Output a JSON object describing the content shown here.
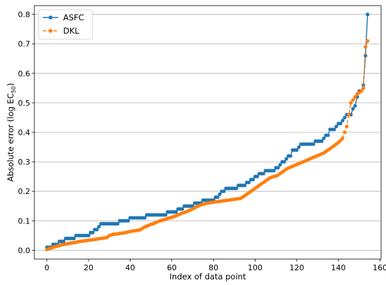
{
  "chart_data": {
    "type": "line",
    "title": "",
    "xlabel": "Index of data point",
    "ylabel": {
      "prefix": "Absolute error (log EC",
      "subscript": "50",
      "suffix": ")"
    },
    "xlim": [
      -6,
      160.5
    ],
    "ylim": [
      -0.03,
      0.83
    ],
    "xticks": [
      0,
      20,
      40,
      60,
      80,
      100,
      120,
      140,
      160
    ],
    "yticks": [
      0.0,
      0.1,
      0.2,
      0.3,
      0.4,
      0.5,
      0.6,
      0.7,
      0.8
    ],
    "xtick_labels": [
      "0",
      "20",
      "40",
      "60",
      "80",
      "100",
      "120",
      "140",
      "160"
    ],
    "ytick_labels": [
      "0.0",
      "0.1",
      "0.2",
      "0.3",
      "0.4",
      "0.5",
      "0.6",
      "0.7",
      "0.8"
    ],
    "grid": "y",
    "legend": "top-left",
    "series": [
      {
        "name": "ASFC",
        "color": "#1f77b4",
        "linestyle": "solid",
        "marker": "circle",
        "x": [
          0,
          1,
          2,
          3,
          4,
          5,
          6,
          7,
          8,
          9,
          10,
          11,
          12,
          13,
          14,
          15,
          16,
          17,
          18,
          19,
          20,
          21,
          22,
          23,
          24,
          25,
          26,
          27,
          28,
          29,
          30,
          31,
          32,
          33,
          34,
          35,
          36,
          37,
          38,
          39,
          40,
          41,
          42,
          43,
          44,
          45,
          46,
          47,
          48,
          49,
          50,
          51,
          52,
          53,
          54,
          55,
          56,
          57,
          58,
          59,
          60,
          61,
          62,
          63,
          64,
          65,
          66,
          67,
          68,
          69,
          70,
          71,
          72,
          73,
          74,
          75,
          76,
          77,
          78,
          79,
          80,
          81,
          82,
          83,
          84,
          85,
          86,
          87,
          88,
          89,
          90,
          91,
          92,
          93,
          94,
          95,
          96,
          97,
          98,
          99,
          100,
          101,
          102,
          103,
          104,
          105,
          106,
          107,
          108,
          109,
          110,
          111,
          112,
          113,
          114,
          115,
          116,
          117,
          118,
          119,
          120,
          121,
          122,
          123,
          124,
          125,
          126,
          127,
          128,
          129,
          130,
          131,
          132,
          133,
          134,
          135,
          136,
          137,
          138,
          139,
          140,
          141,
          142,
          143,
          144,
          145,
          146,
          147,
          148,
          149,
          150,
          151,
          152,
          153,
          154
        ],
        "values": [
          0.01,
          0.01,
          0.01,
          0.02,
          0.02,
          0.02,
          0.03,
          0.03,
          0.03,
          0.04,
          0.04,
          0.04,
          0.04,
          0.04,
          0.05,
          0.05,
          0.05,
          0.05,
          0.05,
          0.05,
          0.05,
          0.06,
          0.06,
          0.07,
          0.07,
          0.08,
          0.09,
          0.09,
          0.09,
          0.09,
          0.09,
          0.09,
          0.09,
          0.09,
          0.09,
          0.1,
          0.1,
          0.1,
          0.1,
          0.1,
          0.11,
          0.11,
          0.11,
          0.11,
          0.11,
          0.11,
          0.11,
          0.11,
          0.12,
          0.12,
          0.12,
          0.12,
          0.12,
          0.12,
          0.12,
          0.12,
          0.12,
          0.12,
          0.13,
          0.13,
          0.13,
          0.13,
          0.13,
          0.14,
          0.14,
          0.14,
          0.15,
          0.15,
          0.15,
          0.15,
          0.15,
          0.16,
          0.16,
          0.16,
          0.16,
          0.17,
          0.17,
          0.17,
          0.17,
          0.17,
          0.17,
          0.18,
          0.18,
          0.19,
          0.2,
          0.2,
          0.21,
          0.21,
          0.21,
          0.21,
          0.21,
          0.21,
          0.22,
          0.22,
          0.22,
          0.22,
          0.23,
          0.23,
          0.24,
          0.24,
          0.25,
          0.25,
          0.26,
          0.26,
          0.26,
          0.27,
          0.27,
          0.27,
          0.27,
          0.27,
          0.28,
          0.28,
          0.29,
          0.3,
          0.3,
          0.31,
          0.32,
          0.32,
          0.34,
          0.34,
          0.34,
          0.35,
          0.36,
          0.36,
          0.36,
          0.36,
          0.36,
          0.36,
          0.36,
          0.37,
          0.37,
          0.37,
          0.37,
          0.38,
          0.39,
          0.39,
          0.41,
          0.41,
          0.41,
          0.42,
          0.43,
          0.43,
          0.44,
          0.45,
          0.46,
          0.46,
          0.46,
          0.48,
          0.49,
          0.52,
          0.54,
          0.54,
          0.56,
          0.66,
          0.8
        ]
      },
      {
        "name": "DKL",
        "color": "#ff7f0e",
        "linestyle": "dashed",
        "marker": "circle",
        "x": [
          0,
          1,
          2,
          3,
          4,
          5,
          6,
          7,
          8,
          9,
          10,
          11,
          12,
          13,
          14,
          15,
          16,
          17,
          18,
          19,
          20,
          21,
          22,
          23,
          24,
          25,
          26,
          27,
          28,
          29,
          30,
          31,
          32,
          33,
          34,
          35,
          36,
          37,
          38,
          39,
          40,
          41,
          42,
          43,
          44,
          45,
          46,
          47,
          48,
          49,
          50,
          51,
          52,
          53,
          54,
          55,
          56,
          57,
          58,
          59,
          60,
          61,
          62,
          63,
          64,
          65,
          66,
          67,
          68,
          69,
          70,
          71,
          72,
          73,
          74,
          75,
          76,
          77,
          78,
          79,
          80,
          81,
          82,
          83,
          84,
          85,
          86,
          87,
          88,
          89,
          90,
          91,
          92,
          93,
          94,
          95,
          96,
          97,
          98,
          99,
          100,
          101,
          102,
          103,
          104,
          105,
          106,
          107,
          108,
          109,
          110,
          111,
          112,
          113,
          114,
          115,
          116,
          117,
          118,
          119,
          120,
          121,
          122,
          123,
          124,
          125,
          126,
          127,
          128,
          129,
          130,
          131,
          132,
          133,
          134,
          135,
          136,
          137,
          138,
          139,
          140,
          141,
          142,
          143,
          144,
          145,
          146,
          147,
          148,
          149,
          150,
          151,
          152,
          153,
          154
        ],
        "values": [
          0.003,
          0.005,
          0.007,
          0.01,
          0.012,
          0.014,
          0.016,
          0.018,
          0.02,
          0.021,
          0.022,
          0.024,
          0.025,
          0.026,
          0.027,
          0.029,
          0.03,
          0.031,
          0.032,
          0.033,
          0.034,
          0.035,
          0.036,
          0.037,
          0.038,
          0.039,
          0.04,
          0.041,
          0.042,
          0.044,
          0.05,
          0.052,
          0.054,
          0.055,
          0.056,
          0.057,
          0.058,
          0.059,
          0.06,
          0.062,
          0.064,
          0.065,
          0.066,
          0.067,
          0.068,
          0.07,
          0.075,
          0.079,
          0.082,
          0.085,
          0.088,
          0.09,
          0.093,
          0.096,
          0.099,
          0.101,
          0.103,
          0.105,
          0.108,
          0.11,
          0.112,
          0.114,
          0.117,
          0.12,
          0.123,
          0.126,
          0.128,
          0.131,
          0.134,
          0.137,
          0.14,
          0.144,
          0.148,
          0.151,
          0.154,
          0.156,
          0.158,
          0.16,
          0.161,
          0.162,
          0.163,
          0.164,
          0.165,
          0.166,
          0.167,
          0.168,
          0.169,
          0.17,
          0.171,
          0.172,
          0.173,
          0.174,
          0.175,
          0.176,
          0.18,
          0.185,
          0.19,
          0.195,
          0.2,
          0.205,
          0.21,
          0.215,
          0.22,
          0.225,
          0.23,
          0.235,
          0.24,
          0.245,
          0.248,
          0.25,
          0.252,
          0.255,
          0.26,
          0.265,
          0.27,
          0.275,
          0.279,
          0.282,
          0.285,
          0.288,
          0.291,
          0.294,
          0.297,
          0.3,
          0.303,
          0.306,
          0.309,
          0.312,
          0.315,
          0.318,
          0.321,
          0.324,
          0.327,
          0.33,
          0.335,
          0.34,
          0.345,
          0.35,
          0.355,
          0.36,
          0.366,
          0.372,
          0.38,
          0.4,
          0.42,
          0.46,
          0.5,
          0.51,
          0.52,
          0.53,
          0.535,
          0.54,
          0.55,
          0.69,
          0.71
        ]
      }
    ]
  }
}
